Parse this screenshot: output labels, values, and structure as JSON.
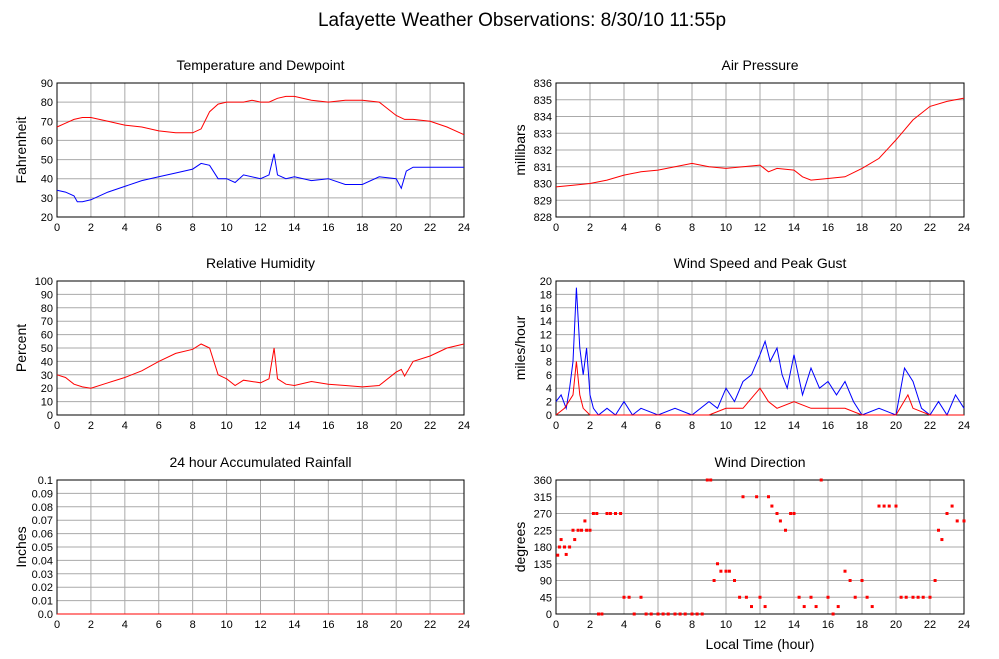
{
  "page_title": "Lafayette Weather Observations: 8/30/10 11:55p",
  "xlabel_shared": "Local Time (hour)",
  "colors": {
    "red": "#ff0000",
    "blue": "#0000ff",
    "grid": "#aaaaaa"
  },
  "chart_data": [
    {
      "id": "temp",
      "type": "line",
      "title": "Temperature and Dewpoint",
      "ylabel": "Fahrenheit",
      "xlim": [
        0,
        24
      ],
      "ylim": [
        20,
        90
      ],
      "xticks": [
        0,
        2,
        4,
        6,
        8,
        10,
        12,
        14,
        16,
        18,
        20,
        22,
        24
      ],
      "yticks": [
        20,
        30,
        40,
        50,
        60,
        70,
        80,
        90
      ],
      "series": [
        {
          "color": "#ff0000",
          "x": [
            0,
            0.5,
            1,
            1.5,
            2,
            2.5,
            3,
            4,
            5,
            6,
            7,
            8,
            8.5,
            9,
            9.5,
            10,
            11,
            11.5,
            12,
            12.5,
            13,
            13.5,
            14,
            15,
            16,
            17,
            18,
            19,
            20,
            20.5,
            21,
            22,
            23,
            24
          ],
          "y": [
            67,
            69,
            71,
            72,
            72,
            71,
            70,
            68,
            67,
            65,
            64,
            64,
            66,
            75,
            79,
            80,
            80,
            81,
            80,
            80,
            82,
            83,
            83,
            81,
            80,
            81,
            81,
            80,
            73,
            71,
            71,
            70,
            67,
            63
          ]
        },
        {
          "color": "#0000ff",
          "x": [
            0,
            0.5,
            1,
            1.2,
            1.5,
            2,
            2.5,
            3,
            4,
            5,
            6,
            7,
            8,
            8.5,
            9,
            9.5,
            10,
            10.5,
            11,
            12,
            12.5,
            12.8,
            13,
            13.5,
            14,
            15,
            16,
            17,
            18,
            19,
            20,
            20.3,
            20.6,
            21,
            22,
            23,
            24
          ],
          "y": [
            34,
            33,
            31,
            28,
            28,
            29,
            31,
            33,
            36,
            39,
            41,
            43,
            45,
            48,
            47,
            40,
            40,
            38,
            42,
            40,
            42,
            53,
            42,
            40,
            41,
            39,
            40,
            37,
            37,
            41,
            40,
            35,
            44,
            46,
            46,
            46,
            46
          ]
        }
      ]
    },
    {
      "id": "pressure",
      "type": "line",
      "title": "Air Pressure",
      "ylabel": "millibars",
      "xlim": [
        0,
        24
      ],
      "ylim": [
        828,
        836
      ],
      "xticks": [
        0,
        2,
        4,
        6,
        8,
        10,
        12,
        14,
        16,
        18,
        20,
        22,
        24
      ],
      "yticks": [
        828,
        829,
        830,
        831,
        832,
        833,
        834,
        835,
        836
      ],
      "series": [
        {
          "color": "#ff0000",
          "x": [
            0,
            1,
            2,
            3,
            4,
            5,
            6,
            7,
            8,
            9,
            10,
            11,
            12,
            12.5,
            13,
            14,
            14.5,
            15,
            16,
            17,
            18,
            19,
            20,
            20.5,
            21,
            21.5,
            22,
            23,
            24
          ],
          "y": [
            829.8,
            829.9,
            830,
            830.2,
            830.5,
            830.7,
            830.8,
            831,
            831.2,
            831,
            830.9,
            831,
            831.1,
            830.7,
            830.9,
            830.8,
            830.4,
            830.2,
            830.3,
            830.4,
            830.9,
            831.5,
            832.6,
            833.2,
            833.8,
            834.2,
            834.6,
            834.9,
            835.1
          ]
        }
      ]
    },
    {
      "id": "humidity",
      "type": "line",
      "title": "Relative Humidity",
      "ylabel": "Percent",
      "xlim": [
        0,
        24
      ],
      "ylim": [
        0,
        100
      ],
      "xticks": [
        0,
        2,
        4,
        6,
        8,
        10,
        12,
        14,
        16,
        18,
        20,
        22,
        24
      ],
      "yticks": [
        0,
        10,
        20,
        30,
        40,
        50,
        60,
        70,
        80,
        90,
        100
      ],
      "series": [
        {
          "color": "#ff0000",
          "x": [
            0,
            0.5,
            1,
            1.5,
            2,
            3,
            4,
            5,
            6,
            7,
            8,
            8.5,
            9,
            9.5,
            10,
            10.5,
            11,
            12,
            12.5,
            12.8,
            13,
            13.5,
            14,
            15,
            16,
            17,
            18,
            19,
            20,
            20.3,
            20.5,
            21,
            22,
            23,
            24
          ],
          "y": [
            30,
            28,
            23,
            21,
            20,
            24,
            28,
            33,
            40,
            46,
            49,
            53,
            50,
            30,
            27,
            22,
            26,
            24,
            27,
            50,
            27,
            23,
            22,
            25,
            23,
            22,
            21,
            22,
            32,
            34,
            29,
            40,
            44,
            50,
            53
          ]
        }
      ]
    },
    {
      "id": "wind",
      "type": "line",
      "title": "Wind Speed and Peak Gust",
      "ylabel": "miles/hour",
      "xlim": [
        0,
        24
      ],
      "ylim": [
        0,
        20
      ],
      "xticks": [
        0,
        2,
        4,
        6,
        8,
        10,
        12,
        14,
        16,
        18,
        20,
        22,
        24
      ],
      "yticks": [
        0,
        2,
        4,
        6,
        8,
        10,
        12,
        14,
        16,
        18,
        20
      ],
      "series": [
        {
          "color": "#0000ff",
          "x": [
            0,
            0.3,
            0.6,
            0.8,
            1,
            1.2,
            1.4,
            1.6,
            1.8,
            2,
            2.2,
            2.5,
            3,
            3.5,
            4,
            4.5,
            5,
            6,
            7,
            8,
            9,
            9.5,
            10,
            10.5,
            11,
            11.5,
            12,
            12.3,
            12.6,
            13,
            13.3,
            13.6,
            14,
            14.5,
            15,
            15.5,
            16,
            16.5,
            17,
            17.5,
            18,
            19,
            20,
            20.5,
            21,
            21.5,
            22,
            22.5,
            23,
            23.5,
            24
          ],
          "y": [
            2,
            3,
            1,
            4,
            8,
            19,
            10,
            6,
            10,
            3,
            1,
            0,
            1,
            0,
            2,
            0,
            1,
            0,
            1,
            0,
            2,
            1,
            4,
            2,
            5,
            6,
            9,
            11,
            8,
            10,
            6,
            4,
            9,
            3,
            7,
            4,
            5,
            3,
            5,
            2,
            0,
            1,
            0,
            7,
            5,
            1,
            0,
            2,
            0,
            3,
            1
          ]
        },
        {
          "color": "#ff0000",
          "x": [
            0,
            0.5,
            1,
            1.2,
            1.4,
            1.6,
            2,
            2.5,
            9,
            10,
            11,
            12,
            12.5,
            13,
            14,
            15,
            16,
            17,
            18,
            20,
            20.7,
            21,
            22,
            24
          ],
          "y": [
            0,
            1,
            3,
            8,
            3,
            1,
            0,
            0,
            0,
            1,
            1,
            4,
            2,
            1,
            2,
            1,
            1,
            1,
            0,
            0,
            3,
            1,
            0,
            0
          ]
        }
      ]
    },
    {
      "id": "rain",
      "type": "line",
      "title": "24 hour Accumulated Rainfall",
      "ylabel": "Inches",
      "xlim": [
        0,
        24
      ],
      "ylim": [
        0,
        0.1
      ],
      "xticks": [
        0,
        2,
        4,
        6,
        8,
        10,
        12,
        14,
        16,
        18,
        20,
        22,
        24
      ],
      "yticks": [
        "0.0",
        "0.01",
        "0.02",
        "0.03",
        "0.04",
        "0.05",
        "0.06",
        "0.07",
        "0.08",
        "0.09",
        "0.1"
      ],
      "series": [
        {
          "color": "#ff0000",
          "x": [
            0,
            24
          ],
          "y": [
            0,
            0
          ]
        }
      ]
    },
    {
      "id": "direction",
      "type": "scatter",
      "title": "Wind Direction",
      "ylabel": "degrees",
      "xlabel": "Local Time (hour)",
      "xlim": [
        0,
        24
      ],
      "ylim": [
        0,
        360
      ],
      "xticks": [
        0,
        2,
        4,
        6,
        8,
        10,
        12,
        14,
        16,
        18,
        20,
        22,
        24
      ],
      "yticks": [
        0,
        45,
        90,
        135,
        180,
        225,
        270,
        315,
        360
      ],
      "series": [
        {
          "color": "#ff0000",
          "x": [
            0.1,
            0.2,
            0.3,
            0.5,
            0.6,
            0.8,
            1,
            1.1,
            1.3,
            1.5,
            1.7,
            1.8,
            2,
            2.2,
            2.4,
            2.5,
            2.7,
            3,
            3.2,
            3.5,
            3.8,
            4,
            4.3,
            4.6,
            5,
            5.3,
            5.6,
            6,
            6.3,
            6.6,
            7,
            7.3,
            7.6,
            8,
            8.3,
            8.6,
            8.9,
            9.1,
            9.3,
            9.5,
            9.7,
            10,
            10.2,
            10.5,
            10.8,
            11,
            11.2,
            11.5,
            11.8,
            12,
            12.3,
            12.5,
            12.7,
            13,
            13.2,
            13.5,
            13.8,
            14,
            14.3,
            14.6,
            15,
            15.3,
            15.6,
            16,
            16.3,
            16.6,
            17,
            17.3,
            17.6,
            18,
            18.3,
            18.6,
            19,
            19.3,
            19.6,
            20,
            20.3,
            20.6,
            21,
            21.3,
            21.6,
            22,
            22.3,
            22.5,
            22.7,
            23,
            23.3,
            23.6,
            24
          ],
          "y": [
            158,
            180,
            200,
            180,
            160,
            180,
            225,
            200,
            225,
            225,
            250,
            225,
            225,
            270,
            270,
            0,
            0,
            270,
            270,
            270,
            270,
            45,
            45,
            0,
            45,
            0,
            0,
            0,
            0,
            0,
            0,
            0,
            0,
            0,
            0,
            0,
            360,
            360,
            90,
            135,
            115,
            115,
            115,
            90,
            45,
            315,
            45,
            20,
            315,
            45,
            20,
            315,
            290,
            270,
            250,
            225,
            270,
            270,
            45,
            20,
            45,
            20,
            360,
            45,
            0,
            20,
            115,
            90,
            45,
            90,
            45,
            20,
            290,
            290,
            290,
            290,
            45,
            45,
            45,
            45,
            45,
            45,
            90,
            225,
            200,
            270,
            290,
            250,
            250
          ]
        }
      ]
    }
  ]
}
